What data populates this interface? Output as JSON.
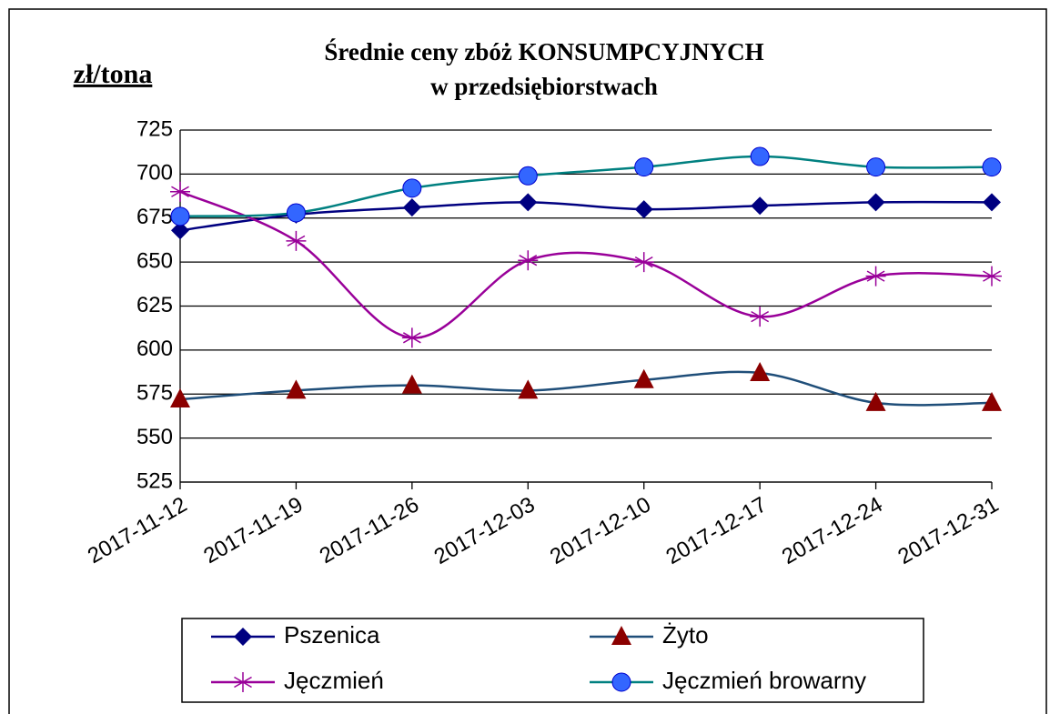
{
  "chart_data": {
    "type": "line",
    "title": "Średnie ceny zbóż KONSUMPCYJNYCH",
    "subtitle": "w przedsiębiorstwach",
    "y_label": "zł/tona",
    "categories": [
      "2017-11-12",
      "2017-11-19",
      "2017-11-26",
      "2017-12-03",
      "2017-12-10",
      "2017-12-17",
      "2017-12-24",
      "2017-12-31"
    ],
    "series": [
      {
        "name": "Pszenica",
        "color": "#000080",
        "marker_color": "#000080",
        "marker": "diamond",
        "values": [
          668,
          677,
          681,
          684,
          680,
          682,
          684,
          684
        ]
      },
      {
        "name": "Żyto",
        "color": "#1f4e79",
        "marker_color": "#8b0000",
        "marker": "triangle",
        "values": [
          572,
          577,
          580,
          577,
          583,
          587,
          570,
          570
        ]
      },
      {
        "name": "Jęczmień",
        "color": "#990099",
        "marker_color": "#990099",
        "marker": "star",
        "values": [
          690,
          662,
          607,
          651,
          650,
          619,
          642,
          642
        ]
      },
      {
        "name": "Jęczmień browarny",
        "color": "#008080",
        "marker_color": "#3366ff",
        "marker": "circle",
        "values": [
          676,
          678,
          692,
          699,
          704,
          710,
          704,
          704
        ]
      }
    ],
    "ylim": [
      525,
      725
    ],
    "yticks": [
      525,
      550,
      575,
      600,
      625,
      650,
      675,
      700,
      725
    ],
    "grid": true,
    "smooth": true
  }
}
